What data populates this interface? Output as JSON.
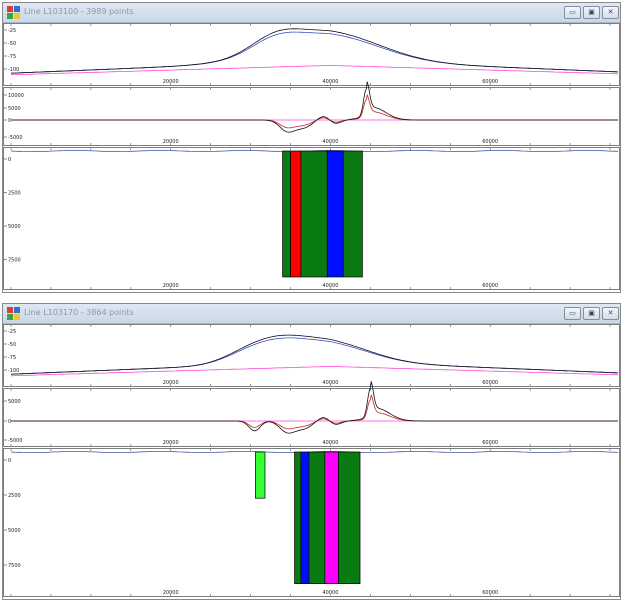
{
  "windows": [
    {
      "title": "Line L103100 - 3989 points",
      "controls": {
        "minimize": "▭",
        "maximize": "▣",
        "close": "✕"
      },
      "panel1": {
        "y_ticks": [
          "-25",
          "-50",
          "-75",
          "-100"
        ],
        "x_ticks": [
          "20000",
          "40000",
          "60000"
        ]
      },
      "panel2": {
        "y_ticks": [
          "10000",
          "5000",
          "0",
          "-5000"
        ],
        "x_ticks": [
          "20000",
          "40000",
          "60000"
        ]
      },
      "panel3": {
        "y_ticks": [
          "0",
          "2500",
          "5000",
          "7500"
        ],
        "x_ticks": [
          "20000",
          "40000",
          "60000"
        ],
        "bars": [
          {
            "x0": 34000,
            "x1": 35000,
            "depth_top": 0,
            "depth_bottom": 9400,
            "color": "#0a7a12"
          },
          {
            "x0": 35000,
            "x1": 36300,
            "depth_top": 0,
            "depth_bottom": 9400,
            "color": "#ff0000"
          },
          {
            "x0": 36300,
            "x1": 39600,
            "depth_top": 0,
            "depth_bottom": 9400,
            "color": "#0a7a12"
          },
          {
            "x0": 39600,
            "x1": 41600,
            "depth_top": 0,
            "depth_bottom": 9400,
            "color": "#0010ff"
          },
          {
            "x0": 41600,
            "x1": 44000,
            "depth_top": 0,
            "depth_bottom": 9400,
            "color": "#0a7a12"
          }
        ]
      }
    },
    {
      "title": "Line L103170 - 3864 points",
      "controls": {
        "minimize": "▭",
        "maximize": "▣",
        "close": "✕"
      },
      "panel1": {
        "y_ticks": [
          "-25",
          "-50",
          "-75",
          "-100"
        ],
        "x_ticks": [
          "20000",
          "40000",
          "60000"
        ]
      },
      "panel2": {
        "y_ticks": [
          "5000",
          "0",
          "-5000"
        ],
        "x_ticks": [
          "20000",
          "40000",
          "60000"
        ]
      },
      "panel3": {
        "y_ticks": [
          "0",
          "2500",
          "5000",
          "7500"
        ],
        "x_ticks": [
          "20000",
          "40000",
          "60000"
        ],
        "bars": [
          {
            "x0": 30600,
            "x1": 31800,
            "depth_top": 0,
            "depth_bottom": 3300,
            "color": "#33ff33"
          },
          {
            "x0": 35500,
            "x1": 36300,
            "depth_top": 0,
            "depth_bottom": 9400,
            "color": "#0a7a12"
          },
          {
            "x0": 36300,
            "x1": 37300,
            "depth_top": 0,
            "depth_bottom": 9400,
            "color": "#0010ff"
          },
          {
            "x0": 37300,
            "x1": 39300,
            "depth_top": 0,
            "depth_bottom": 9400,
            "color": "#0a7a12"
          },
          {
            "x0": 39300,
            "x1": 41000,
            "depth_top": 0,
            "depth_bottom": 9400,
            "color": "#ff00ff"
          },
          {
            "x0": 41000,
            "x1": 43700,
            "depth_top": 0,
            "depth_bottom": 9400,
            "color": "#0a7a12"
          }
        ]
      }
    }
  ],
  "colors": {
    "black_curve": "#111111",
    "blue_curve": "#3a4dd8",
    "magenta_curve": "#ff44dd",
    "red_curve": "#cc2222"
  }
}
